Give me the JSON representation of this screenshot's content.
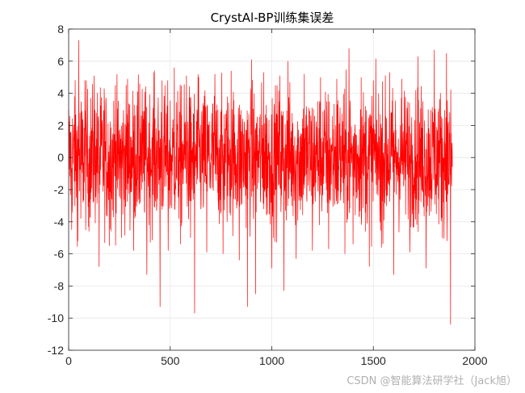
{
  "chart_data": {
    "type": "line",
    "title": "CrystAl-BP训练集误差",
    "xlabel": "",
    "ylabel": "",
    "xlim": [
      0,
      2000
    ],
    "ylim": [
      -12,
      8
    ],
    "xticks": [
      0,
      500,
      1000,
      1500,
      2000
    ],
    "yticks": [
      -12,
      -10,
      -8,
      -6,
      -4,
      -2,
      0,
      2,
      4,
      6,
      8
    ],
    "grid": true,
    "legend": "none",
    "series": [
      {
        "color": "#ff0000",
        "n_points": 1890,
        "x": [
          0,
          15,
          30,
          45,
          50,
          60,
          80,
          100,
          125,
          150,
          175,
          200,
          230,
          260,
          290,
          320,
          350,
          385,
          420,
          450,
          460,
          490,
          520,
          550,
          580,
          600,
          620,
          640,
          680,
          720,
          760,
          800,
          840,
          880,
          900,
          920,
          960,
          1000,
          1040,
          1060,
          1080,
          1120,
          1160,
          1200,
          1240,
          1280,
          1320,
          1360,
          1380,
          1400,
          1440,
          1480,
          1500,
          1540,
          1580,
          1600,
          1640,
          1680,
          1720,
          1760,
          1800,
          1840,
          1860,
          1880,
          1890
        ],
        "y": [
          3.0,
          -4.5,
          3.8,
          -5.2,
          7.3,
          -3.8,
          4.8,
          -4.6,
          5.1,
          -6.8,
          4.3,
          -5.5,
          4.5,
          -5.0,
          4.9,
          -5.8,
          4.6,
          -7.3,
          5.3,
          -9.3,
          4.8,
          -5.8,
          5.6,
          -5.4,
          5.1,
          -5.0,
          -9.7,
          5.0,
          -5.9,
          5.2,
          -6.0,
          5.4,
          -6.4,
          -9.3,
          6.1,
          -8.5,
          5.3,
          -6.9,
          5.1,
          -8.3,
          6.0,
          -6.3,
          5.2,
          -5.8,
          5.0,
          -5.7,
          4.9,
          -6.0,
          6.8,
          -5.4,
          5.0,
          -6.8,
          4.8,
          -5.6,
          5.3,
          -7.3,
          4.9,
          -5.9,
          6.3,
          -6.9,
          6.7,
          -5.0,
          6.5,
          -10.4,
          -0.5
        ]
      }
    ]
  },
  "watermark": "CSDN @智能算法研学社（Jack旭）"
}
